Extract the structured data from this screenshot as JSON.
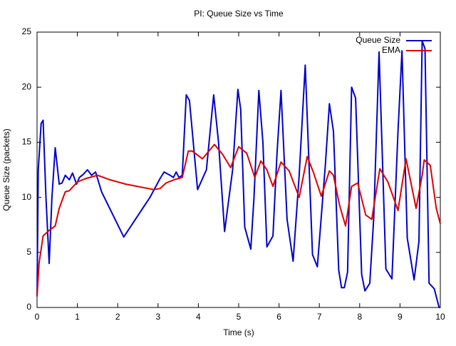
{
  "chart_data": {
    "type": "line",
    "title": "PI: Queue Size vs Time",
    "xlabel": "Time (s)",
    "ylabel": "Queue Size (packets)",
    "xlim": [
      0,
      10
    ],
    "ylim": [
      0,
      25
    ],
    "xticks": [
      0,
      1,
      2,
      3,
      4,
      5,
      6,
      7,
      8,
      9,
      10
    ],
    "yticks": [
      0,
      5,
      10,
      15,
      20,
      25
    ],
    "grid": false,
    "legend": "upper right",
    "series": [
      {
        "name": "Queue Size",
        "color": "#0000cc",
        "x": [
          0,
          0.03,
          0.1,
          0.15,
          0.22,
          0.3,
          0.37,
          0.45,
          0.55,
          0.62,
          0.7,
          0.8,
          0.88,
          0.98,
          1.05,
          1.15,
          1.25,
          1.35,
          1.45,
          1.6,
          2.15,
          2.8,
          3.05,
          3.15,
          3.3,
          3.38,
          3.45,
          3.52,
          3.6,
          3.7,
          3.78,
          3.98,
          4.2,
          4.38,
          4.5,
          4.65,
          4.85,
          4.98,
          5.05,
          5.15,
          5.3,
          5.38,
          5.5,
          5.6,
          5.7,
          5.85,
          5.95,
          6.05,
          6.2,
          6.35,
          6.5,
          6.65,
          6.83,
          6.95,
          7.15,
          7.25,
          7.35,
          7.48,
          7.55,
          7.62,
          7.7,
          7.8,
          7.9,
          8.05,
          8.13,
          8.25,
          8.35,
          8.48,
          8.65,
          8.8,
          8.95,
          9.05,
          9.18,
          9.35,
          9.47,
          9.55,
          9.62,
          9.72,
          9.85,
          9.97,
          10
        ],
        "values": [
          1,
          12.5,
          16.7,
          17,
          10,
          4,
          10,
          14.5,
          11.2,
          11.3,
          12,
          11.6,
          12.2,
          11.2,
          11.8,
          12.1,
          12.5,
          12,
          12.3,
          10.5,
          6.4,
          10,
          11.7,
          12.3,
          12,
          11.8,
          12.3,
          11.8,
          12,
          19.3,
          18.8,
          10.7,
          12.5,
          19.3,
          15,
          6.9,
          12.5,
          19.8,
          18,
          7.3,
          5.3,
          10,
          19.7,
          15,
          5.5,
          6.5,
          14,
          19.7,
          8,
          4.2,
          12,
          22,
          4.8,
          3.7,
          13,
          18.5,
          16,
          3.4,
          1.8,
          1.8,
          3.2,
          20,
          19,
          3,
          1.5,
          2.2,
          8.2,
          23.2,
          3.5,
          2.6,
          16,
          23.3,
          6.3,
          2.5,
          6,
          24.2,
          23.5,
          2.2,
          1.7,
          0,
          0
        ]
      },
      {
        "name": "EMA",
        "color": "#dd0000",
        "x": [
          0,
          0.05,
          0.15,
          0.3,
          0.45,
          0.55,
          0.7,
          0.8,
          1,
          1.2,
          1.5,
          1.8,
          2.2,
          2.9,
          3.05,
          3.2,
          3.4,
          3.6,
          3.75,
          3.85,
          4.1,
          4.4,
          4.6,
          4.8,
          5,
          5.2,
          5.4,
          5.55,
          5.7,
          5.85,
          6.05,
          6.25,
          6.5,
          6.7,
          6.85,
          7.05,
          7.25,
          7.35,
          7.5,
          7.65,
          7.8,
          7.95,
          8.15,
          8.3,
          8.5,
          8.7,
          8.95,
          9.15,
          9.4,
          9.55,
          9.6,
          9.75,
          9.9,
          10
        ],
        "values": [
          1,
          4,
          6.5,
          7,
          7.4,
          9,
          10.5,
          10.6,
          11.4,
          11.7,
          12,
          11.6,
          11.2,
          10.7,
          10.8,
          11.3,
          11.6,
          11.8,
          14.2,
          14.2,
          13.5,
          14.8,
          13.9,
          12.7,
          14.6,
          14,
          11.8,
          13.3,
          12.5,
          11,
          13.2,
          12.4,
          10,
          13.7,
          12.3,
          10.1,
          12.4,
          12,
          9.3,
          7.4,
          11,
          11.3,
          8.4,
          8,
          12.6,
          11.4,
          8.8,
          13.5,
          9,
          12,
          13.4,
          12.9,
          9,
          7.6
        ]
      }
    ]
  }
}
